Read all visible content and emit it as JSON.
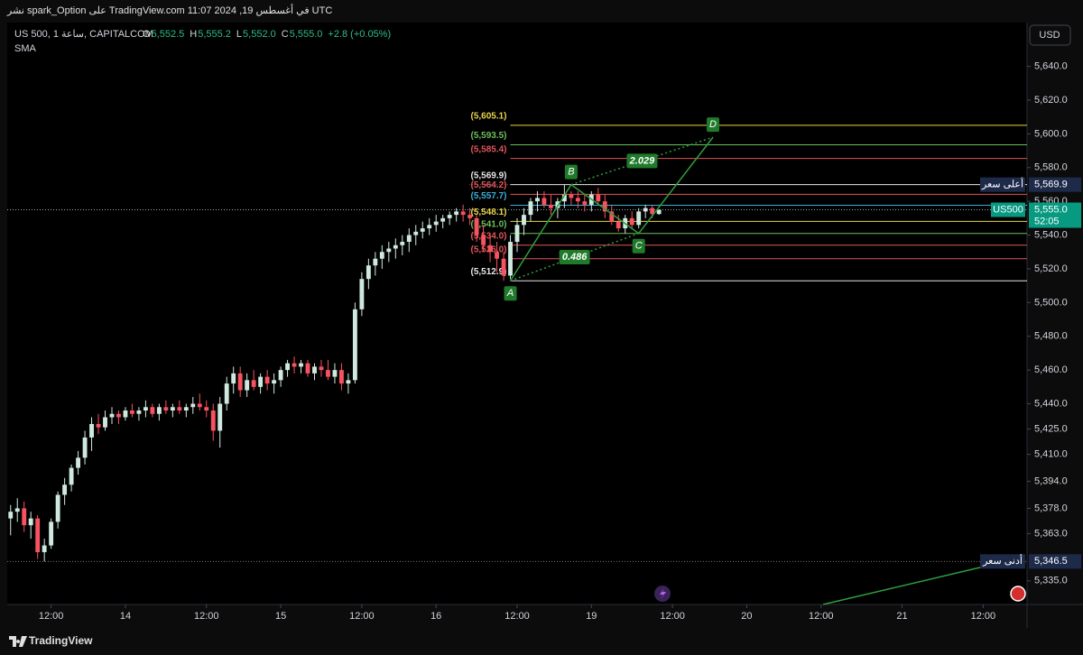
{
  "header": {
    "publish": "نشر spark_Option على TradingView.com في أغسطس 19, 2024 11:07 UTC",
    "symbol": "US 500, ساعة 1, CAPITALCOM",
    "ohlc": [
      {
        "label": "O",
        "value": "5,552.5"
      },
      {
        "label": "H",
        "value": "5,555.2"
      },
      {
        "label": "L",
        "value": "5,552.0"
      },
      {
        "label": "C",
        "value": "5,555.0"
      }
    ],
    "change": "+2.8 (+0.05%)",
    "indicator": "SMA",
    "currency": "USD"
  },
  "footer": {
    "brand": "TradingView"
  },
  "chart_data": {
    "type": "candlestick",
    "up_color": "#cfe9df",
    "down_color": "#f7525f",
    "ylim": [
      5321,
      5666
    ],
    "yticks": [
      {
        "value": 5335,
        "label": "5,335.0"
      },
      {
        "value": 5363,
        "label": "5,363.0"
      },
      {
        "value": 5378,
        "label": "5,378.0"
      },
      {
        "value": 5394,
        "label": "5,394.0"
      },
      {
        "value": 5410,
        "label": "5,410.0"
      },
      {
        "value": 5425,
        "label": "5,425.0"
      },
      {
        "value": 5440,
        "label": "5,440.0"
      },
      {
        "value": 5460,
        "label": "5,460.0"
      },
      {
        "value": 5480,
        "label": "5,480.0"
      },
      {
        "value": 5500,
        "label": "5,500.0"
      },
      {
        "value": 5520,
        "label": "5,520.0"
      },
      {
        "value": 5540,
        "label": "5,540.0"
      },
      {
        "value": 5560,
        "label": "5,560.0"
      },
      {
        "value": 5580,
        "label": "5,580.0"
      },
      {
        "value": 5600,
        "label": "5,600.0"
      },
      {
        "value": 5620,
        "label": "5,620.0"
      },
      {
        "value": 5640,
        "label": "5,640.0"
      }
    ],
    "xlim": [
      -0.5,
      150.5
    ],
    "xticks": [
      {
        "value": 6,
        "label": "12:00"
      },
      {
        "value": 17,
        "label": "14"
      },
      {
        "value": 29,
        "label": "12:00"
      },
      {
        "value": 40,
        "label": "15"
      },
      {
        "value": 52,
        "label": "12:00"
      },
      {
        "value": 63,
        "label": "16"
      },
      {
        "value": 75,
        "label": "12:00"
      },
      {
        "value": 86,
        "label": "19"
      },
      {
        "value": 98,
        "label": "12:00"
      },
      {
        "value": 109,
        "label": "20"
      },
      {
        "value": 120,
        "label": "12:00"
      },
      {
        "value": 132,
        "label": "21"
      },
      {
        "value": 144,
        "label": "12:00"
      }
    ],
    "candles": [
      [
        5372,
        5380,
        5362,
        5376
      ],
      [
        5376,
        5384,
        5370,
        5378
      ],
      [
        5378,
        5382,
        5364,
        5368
      ],
      [
        5368,
        5376,
        5360,
        5372
      ],
      [
        5372,
        5374,
        5348,
        5352
      ],
      [
        5352,
        5360,
        5346.5,
        5356
      ],
      [
        5356,
        5372,
        5354,
        5370
      ],
      [
        5370,
        5388,
        5366,
        5386
      ],
      [
        5386,
        5396,
        5380,
        5392
      ],
      [
        5392,
        5404,
        5388,
        5402
      ],
      [
        5402,
        5412,
        5398,
        5408
      ],
      [
        5408,
        5424,
        5404,
        5420
      ],
      [
        5420,
        5432,
        5412,
        5428
      ],
      [
        5428,
        5434,
        5422,
        5426
      ],
      [
        5426,
        5436,
        5424,
        5432
      ],
      [
        5432,
        5438,
        5428,
        5434
      ],
      [
        5434,
        5436,
        5428,
        5432
      ],
      [
        5432,
        5438,
        5430,
        5436
      ],
      [
        5436,
        5440,
        5432,
        5434
      ],
      [
        5434,
        5438,
        5430,
        5436
      ],
      [
        5436,
        5442,
        5432,
        5438
      ],
      [
        5438,
        5440,
        5432,
        5434
      ],
      [
        5434,
        5440,
        5430,
        5438
      ],
      [
        5438,
        5442,
        5434,
        5436
      ],
      [
        5436,
        5440,
        5432,
        5438
      ],
      [
        5438,
        5442,
        5434,
        5436
      ],
      [
        5436,
        5440,
        5432,
        5438
      ],
      [
        5438,
        5444,
        5434,
        5440
      ],
      [
        5440,
        5446,
        5436,
        5438
      ],
      [
        5438,
        5442,
        5432,
        5436
      ],
      [
        5436,
        5440,
        5418,
        5424
      ],
      [
        5424,
        5444,
        5414,
        5440
      ],
      [
        5440,
        5456,
        5436,
        5452
      ],
      [
        5452,
        5462,
        5446,
        5458
      ],
      [
        5458,
        5462,
        5444,
        5448
      ],
      [
        5448,
        5458,
        5444,
        5454
      ],
      [
        5454,
        5460,
        5448,
        5450
      ],
      [
        5450,
        5458,
        5446,
        5456
      ],
      [
        5456,
        5460,
        5448,
        5452
      ],
      [
        5452,
        5458,
        5446,
        5454
      ],
      [
        5454,
        5462,
        5450,
        5460
      ],
      [
        5460,
        5466,
        5456,
        5464
      ],
      [
        5464,
        5468,
        5458,
        5462
      ],
      [
        5462,
        5466,
        5458,
        5464
      ],
      [
        5464,
        5466,
        5456,
        5458
      ],
      [
        5458,
        5464,
        5454,
        5462
      ],
      [
        5462,
        5466,
        5456,
        5460
      ],
      [
        5460,
        5466,
        5454,
        5456
      ],
      [
        5456,
        5464,
        5452,
        5460
      ],
      [
        5460,
        5464,
        5448,
        5452
      ],
      [
        5452,
        5458,
        5446,
        5454
      ],
      [
        5454,
        5500,
        5452,
        5496
      ],
      [
        5496,
        5518,
        5492,
        5514
      ],
      [
        5514,
        5526,
        5508,
        5522
      ],
      [
        5522,
        5530,
        5516,
        5526
      ],
      [
        5526,
        5534,
        5520,
        5530
      ],
      [
        5530,
        5536,
        5524,
        5532
      ],
      [
        5532,
        5538,
        5526,
        5534
      ],
      [
        5534,
        5540,
        5528,
        5536
      ],
      [
        5536,
        5544,
        5530,
        5540
      ],
      [
        5540,
        5546,
        5534,
        5542
      ],
      [
        5542,
        5548,
        5538,
        5544
      ],
      [
        5544,
        5550,
        5540,
        5546
      ],
      [
        5546,
        5552,
        5542,
        5548
      ],
      [
        5548,
        5552,
        5544,
        5550
      ],
      [
        5550,
        5554,
        5546,
        5552
      ],
      [
        5552,
        5556,
        5548,
        5554
      ],
      [
        5554,
        5558,
        5548,
        5552
      ],
      [
        5552,
        5556,
        5546,
        5550
      ],
      [
        5550,
        5552,
        5536,
        5540
      ],
      [
        5540,
        5546,
        5530,
        5534
      ],
      [
        5534,
        5540,
        5524,
        5530
      ],
      [
        5530,
        5536,
        5518,
        5526
      ],
      [
        5526,
        5530,
        5512.9,
        5516
      ],
      [
        5516,
        5540,
        5514,
        5536
      ],
      [
        5536,
        5550,
        5530,
        5546
      ],
      [
        5546,
        5556,
        5540,
        5552
      ],
      [
        5552,
        5562,
        5548,
        5560
      ],
      [
        5560,
        5566,
        5554,
        5562
      ],
      [
        5562,
        5566,
        5556,
        5558
      ],
      [
        5558,
        5564,
        5552,
        5556
      ],
      [
        5556,
        5562,
        5550,
        5560
      ],
      [
        5560,
        5569.9,
        5556,
        5564
      ],
      [
        5564,
        5566,
        5558,
        5562
      ],
      [
        5562,
        5566,
        5556,
        5560
      ],
      [
        5560,
        5564,
        5554,
        5558
      ],
      [
        5558,
        5566,
        5554,
        5564
      ],
      [
        5564,
        5568,
        5558,
        5560
      ],
      [
        5560,
        5564,
        5550,
        5554
      ],
      [
        5554,
        5558,
        5546,
        5548
      ],
      [
        5548,
        5552,
        5542,
        5544
      ],
      [
        5544,
        5552,
        5541,
        5550
      ],
      [
        5550,
        5554,
        5544,
        5546
      ],
      [
        5546,
        5556,
        5544,
        5554
      ],
      [
        5554,
        5558,
        5550,
        5556
      ],
      [
        5556,
        5558,
        5550,
        5552.5
      ],
      [
        5552.5,
        5555.2,
        5552.0,
        5555.0
      ]
    ],
    "levels": [
      {
        "label": "(5,605.1)",
        "value": 5605.1,
        "color": "#e8d44d"
      },
      {
        "label": "(5,593.5)",
        "value": 5593.5,
        "color": "#6cbf5a"
      },
      {
        "label": "(5,585.4)",
        "value": 5585.4,
        "color": "#e0555a"
      },
      {
        "label": "(5,569.9)",
        "value": 5569.9,
        "color": "#e6e6e6"
      },
      {
        "label": "(5,564.2)",
        "value": 5564.2,
        "color": "#e0555a"
      },
      {
        "label": "(5,557.7)",
        "value": 5557.7,
        "color": "#3ab0d8"
      },
      {
        "label": "(5,548.1)",
        "value": 5548.1,
        "color": "#e8d44d"
      },
      {
        "label": "(5,541.0)",
        "value": 5541.0,
        "color": "#6cbf5a"
      },
      {
        "label": "(5,534.0)",
        "value": 5534.0,
        "color": "#e0555a"
      },
      {
        "label": "(5,526.0)",
        "value": 5526.0,
        "color": "#e0555a"
      },
      {
        "label": "(5,512.9)",
        "value": 5512.9,
        "color": "#e6e6e6"
      }
    ],
    "pattern": {
      "color": "#2e9e3e",
      "points": [
        {
          "label": "A",
          "x": 74,
          "y": 5512.9
        },
        {
          "label": "B",
          "x": 83,
          "y": 5569.9
        },
        {
          "label": "C",
          "x": 93,
          "y": 5541.0
        },
        {
          "label": "D",
          "x": 104,
          "y": 5598.0
        }
      ],
      "ratios": [
        {
          "label": "0.486"
        },
        {
          "label": "2.029"
        }
      ]
    },
    "markers": {
      "high": {
        "label": "أعلى سعر",
        "value": 5569.9,
        "value_label": "5,569.9"
      },
      "current": {
        "label": "US500",
        "value": 5555.0,
        "value_label": "5,555.0",
        "countdown": "52:05"
      },
      "low": {
        "label": "أدنى سعر",
        "value": 5346.5,
        "value_label": "5,346.5"
      }
    }
  }
}
